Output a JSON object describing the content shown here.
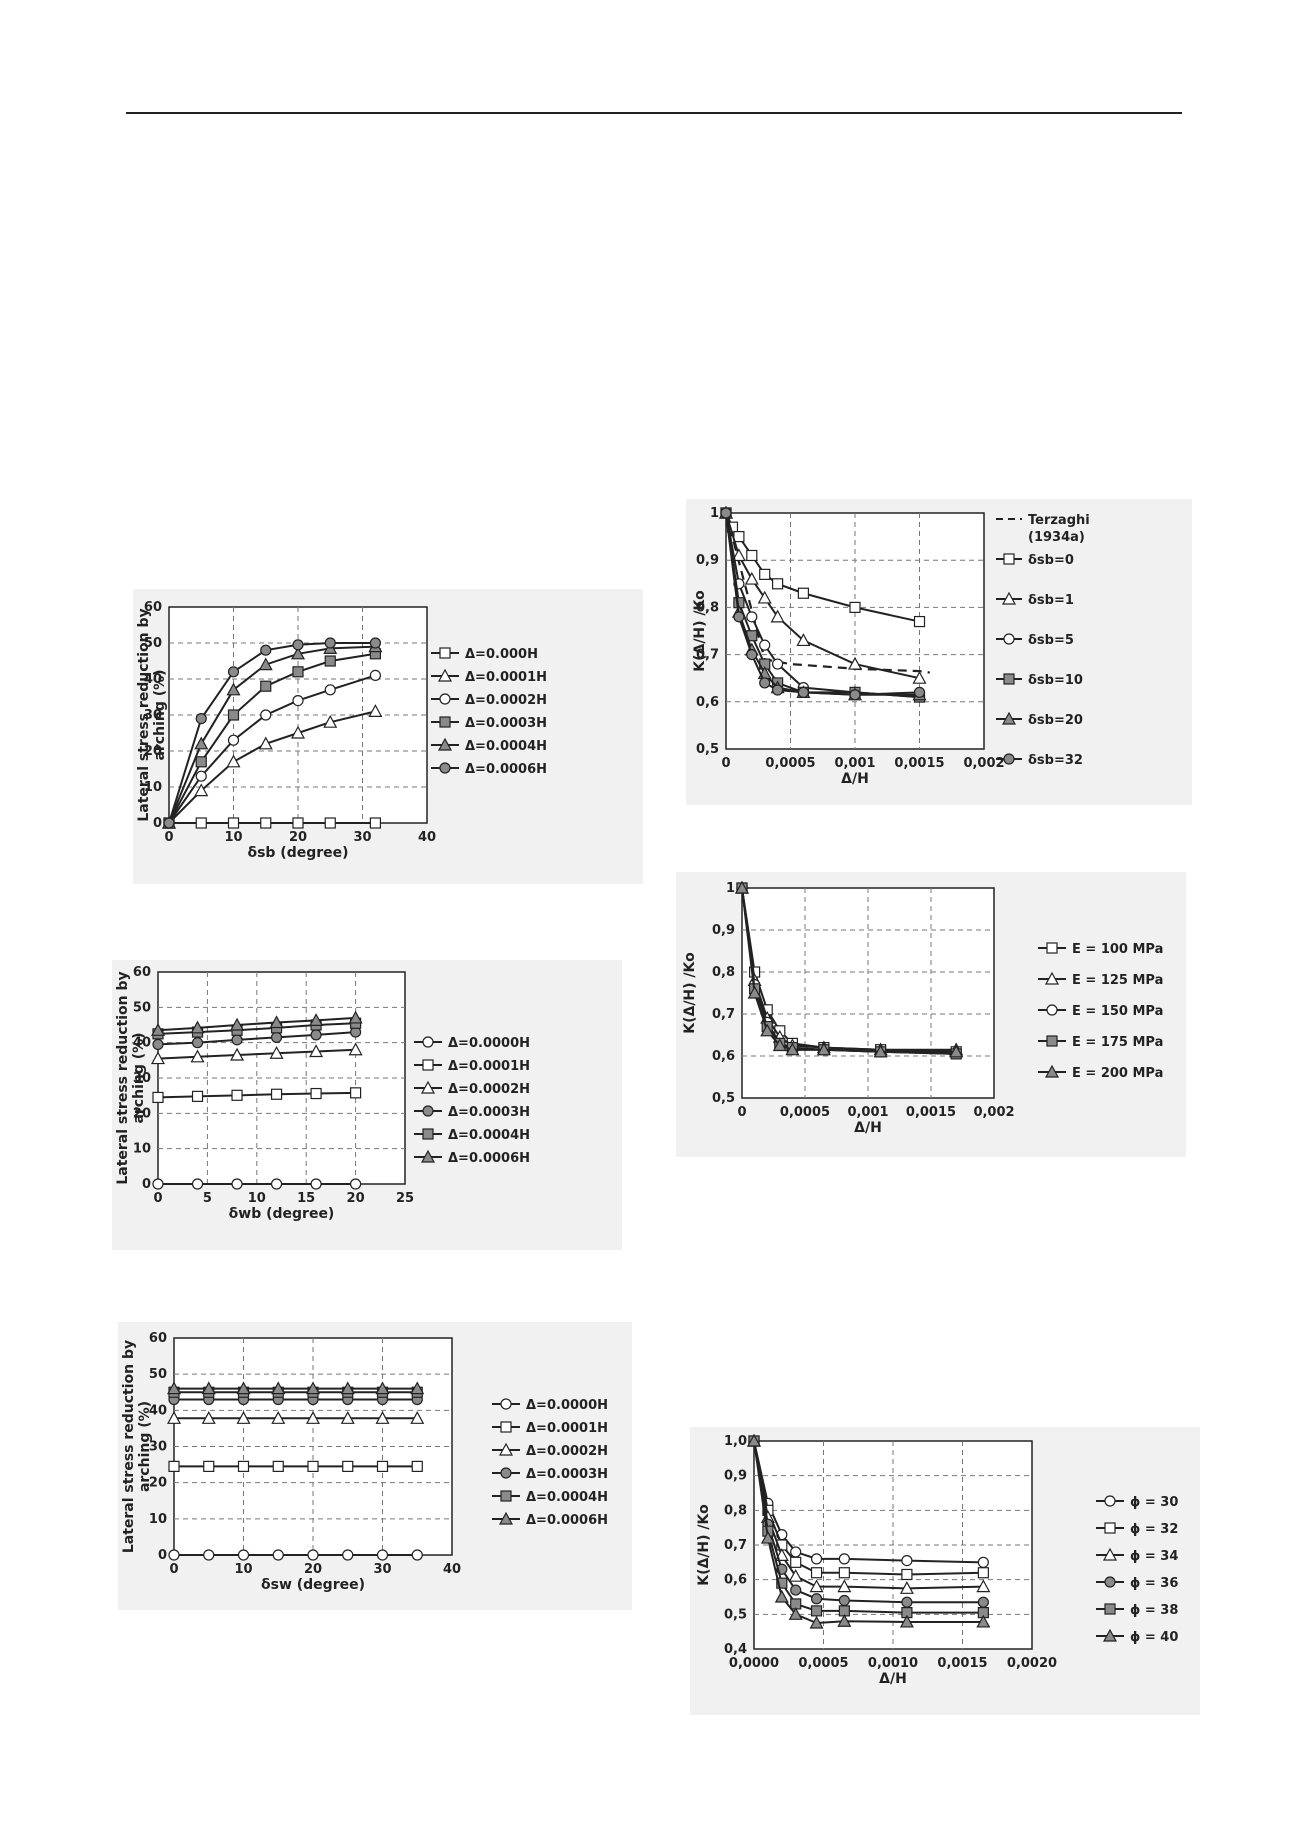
{
  "chart_data": [
    {
      "id": "c1",
      "type": "line",
      "xlabel": "δsb (degree)",
      "ylabel": "Lateral stress reduction by arching (%)",
      "xlim": [
        0,
        40
      ],
      "ylim": [
        0,
        60
      ],
      "xticks": [
        0,
        10,
        20,
        30,
        40
      ],
      "yticks": [
        0,
        10,
        20,
        30,
        40,
        50,
        60
      ],
      "xtick_labels": [
        "0",
        "10",
        "20",
        "30",
        "40"
      ],
      "ytick_labels": [
        "0",
        "10",
        "20",
        "30",
        "40",
        "50",
        "60"
      ],
      "grid": "dashed",
      "legend": "right",
      "series": [
        {
          "name": "Δ=0.000H",
          "marker": "square-open",
          "x": [
            0,
            5,
            10,
            15,
            20,
            25,
            32
          ],
          "y": [
            0,
            0,
            0,
            0,
            0,
            0,
            0
          ]
        },
        {
          "name": "Δ=0.0001H",
          "marker": "triangle-open",
          "x": [
            0,
            5,
            10,
            15,
            20,
            25,
            32
          ],
          "y": [
            0,
            9,
            17,
            22,
            25,
            28,
            31
          ]
        },
        {
          "name": "Δ=0.0002H",
          "marker": "circle-open",
          "x": [
            0,
            5,
            10,
            15,
            20,
            25,
            32
          ],
          "y": [
            0,
            13,
            23,
            30,
            34,
            37,
            41
          ]
        },
        {
          "name": "Δ=0.0003H",
          "marker": "square-gray",
          "x": [
            0,
            5,
            10,
            15,
            20,
            25,
            32
          ],
          "y": [
            0,
            17,
            30,
            38,
            42,
            45,
            47
          ]
        },
        {
          "name": "Δ=0.0004H",
          "marker": "triangle-gray",
          "x": [
            0,
            5,
            10,
            15,
            20,
            25,
            32
          ],
          "y": [
            0,
            22,
            37,
            44,
            47,
            48.5,
            49
          ]
        },
        {
          "name": "Δ=0.0006H",
          "marker": "circle-gray",
          "x": [
            0,
            5,
            10,
            15,
            20,
            25,
            32
          ],
          "y": [
            0,
            29,
            42,
            48,
            49.5,
            50,
            50
          ]
        }
      ]
    },
    {
      "id": "c2",
      "type": "line",
      "xlabel": "Δ/H",
      "ylabel": "K(Δ/H) /Ko",
      "xlim": [
        0,
        0.002
      ],
      "ylim": [
        0.5,
        1
      ],
      "xticks": [
        0,
        0.0005,
        0.001,
        0.0015,
        0.002
      ],
      "yticks": [
        0.5,
        0.6,
        0.7,
        0.8,
        0.9,
        1
      ],
      "xtick_labels": [
        "0",
        "0,0005",
        "0,001",
        "0,0015",
        "0,002"
      ],
      "ytick_labels": [
        "0,5",
        "0,6",
        "0,7",
        "0,8",
        "0,9",
        "1"
      ],
      "grid": "dashed",
      "legend": "right",
      "series": [
        {
          "name": "Terzaghi (1934a)",
          "marker": "dashed",
          "x": [
            0,
            0.0003,
            0.0005,
            0.001,
            0.0015,
            0.00158
          ],
          "y": [
            1,
            0.69,
            0.68,
            0.67,
            0.665,
            0.662
          ]
        },
        {
          "name": "δsb=0",
          "marker": "square-open",
          "x": [
            0,
            5e-05,
            0.0001,
            0.0002,
            0.0003,
            0.0004,
            0.0006,
            0.001,
            0.0015
          ],
          "y": [
            1,
            0.97,
            0.95,
            0.91,
            0.87,
            0.85,
            0.83,
            0.8,
            0.77
          ]
        },
        {
          "name": "δsb=1",
          "marker": "triangle-open",
          "x": [
            0,
            0.0001,
            0.0002,
            0.0003,
            0.0004,
            0.0006,
            0.001,
            0.0015
          ],
          "y": [
            1,
            0.91,
            0.86,
            0.82,
            0.78,
            0.73,
            0.68,
            0.65
          ]
        },
        {
          "name": "δsb=5",
          "marker": "circle-open",
          "x": [
            0,
            0.0001,
            0.0002,
            0.0003,
            0.0004,
            0.0006,
            0.001,
            0.0015
          ],
          "y": [
            1,
            0.85,
            0.78,
            0.72,
            0.68,
            0.63,
            0.62,
            0.61
          ]
        },
        {
          "name": "δsb=10",
          "marker": "square-gray",
          "x": [
            0,
            0.0001,
            0.0002,
            0.0003,
            0.0004,
            0.0006,
            0.001,
            0.0015
          ],
          "y": [
            1,
            0.81,
            0.74,
            0.68,
            0.64,
            0.62,
            0.62,
            0.61
          ]
        },
        {
          "name": "δsb=20",
          "marker": "triangle-gray",
          "x": [
            0,
            0.0001,
            0.0002,
            0.0003,
            0.0004,
            0.0006,
            0.001,
            0.0015
          ],
          "y": [
            1,
            0.79,
            0.71,
            0.66,
            0.63,
            0.62,
            0.615,
            0.615
          ]
        },
        {
          "name": "δsb=32",
          "marker": "circle-gray",
          "x": [
            0,
            0.0001,
            0.0002,
            0.0003,
            0.0004,
            0.0006,
            0.001,
            0.0015
          ],
          "y": [
            1,
            0.78,
            0.7,
            0.64,
            0.625,
            0.62,
            0.615,
            0.62
          ]
        }
      ]
    },
    {
      "id": "c3",
      "type": "line",
      "xlabel": "δwb (degree)",
      "ylabel": "Lateral stress reduction by arching (%)",
      "xlim": [
        0,
        25
      ],
      "ylim": [
        0,
        60
      ],
      "xticks": [
        0,
        5,
        10,
        15,
        20,
        25
      ],
      "yticks": [
        0,
        10,
        20,
        30,
        40,
        50,
        60
      ],
      "xtick_labels": [
        "0",
        "5",
        "10",
        "15",
        "20",
        "25"
      ],
      "ytick_labels": [
        "0",
        "10",
        "20",
        "30",
        "40",
        "50",
        "60"
      ],
      "grid": "dashed",
      "legend": "right",
      "series": [
        {
          "name": "Δ=0.0000H",
          "marker": "circle-open",
          "x": [
            0,
            4,
            8,
            12,
            16,
            20
          ],
          "y": [
            0,
            0,
            0,
            0,
            0,
            0
          ]
        },
        {
          "name": "Δ=0.0001H",
          "marker": "square-open",
          "x": [
            0,
            4,
            8,
            12,
            16,
            20
          ],
          "y": [
            24.5,
            24.8,
            25.1,
            25.4,
            25.6,
            25.8
          ]
        },
        {
          "name": "Δ=0.0002H",
          "marker": "triangle-open",
          "x": [
            0,
            4,
            8,
            12,
            16,
            20
          ],
          "y": [
            35.5,
            36,
            36.5,
            37,
            37.5,
            38
          ]
        },
        {
          "name": "Δ=0.0003H",
          "marker": "circle-gray",
          "x": [
            0,
            4,
            8,
            12,
            16,
            20
          ],
          "y": [
            39.5,
            40,
            40.8,
            41.5,
            42.2,
            43
          ]
        },
        {
          "name": "Δ=0.0004H",
          "marker": "square-gray",
          "x": [
            0,
            4,
            8,
            12,
            16,
            20
          ],
          "y": [
            42.5,
            43,
            43.5,
            44.2,
            45,
            45.5
          ]
        },
        {
          "name": "Δ=0.0006H",
          "marker": "triangle-gray",
          "x": [
            0,
            4,
            8,
            12,
            16,
            20
          ],
          "y": [
            43.5,
            44.2,
            45,
            45.7,
            46.3,
            47
          ]
        }
      ]
    },
    {
      "id": "c4",
      "type": "line",
      "xlabel": "Δ/H",
      "ylabel": "K(Δ/H) /Ko",
      "xlim": [
        0,
        0.002
      ],
      "ylim": [
        0.5,
        1
      ],
      "xticks": [
        0,
        0.0005,
        0.001,
        0.0015,
        0.002
      ],
      "yticks": [
        0.5,
        0.6,
        0.7,
        0.8,
        0.9,
        1
      ],
      "xtick_labels": [
        "0",
        "0,0005",
        "0,001",
        "0,0015",
        "0,002"
      ],
      "ytick_labels": [
        "0,5",
        "0,6",
        "0,7",
        "0,8",
        "0,9",
        "1"
      ],
      "grid": "dashed",
      "legend": "right",
      "series": [
        {
          "name": "E = 100 MPa",
          "marker": "square-open",
          "x": [
            0,
            0.0001,
            0.0002,
            0.0003,
            0.0004,
            0.00065,
            0.0011,
            0.0017
          ],
          "y": [
            1,
            0.8,
            0.71,
            0.66,
            0.63,
            0.62,
            0.615,
            0.61
          ]
        },
        {
          "name": "E = 125 MPa",
          "marker": "triangle-open",
          "x": [
            0,
            0.0001,
            0.0002,
            0.0003,
            0.0004,
            0.00065,
            0.0011,
            0.0017
          ],
          "y": [
            1,
            0.78,
            0.69,
            0.645,
            0.625,
            0.62,
            0.615,
            0.615
          ]
        },
        {
          "name": "E = 150 MPa",
          "marker": "circle-open",
          "x": [
            0,
            0.0001,
            0.0002,
            0.0003,
            0.0004,
            0.00065,
            0.0011,
            0.0017
          ],
          "y": [
            1,
            0.77,
            0.68,
            0.63,
            0.615,
            0.615,
            0.61,
            0.605
          ]
        },
        {
          "name": "E = 175 MPa",
          "marker": "square-gray",
          "x": [
            0,
            0.0001,
            0.0002,
            0.0003,
            0.0004,
            0.00065,
            0.0011,
            0.0017
          ],
          "y": [
            1,
            0.76,
            0.67,
            0.63,
            0.62,
            0.615,
            0.61,
            0.605
          ]
        },
        {
          "name": "E = 200 MPa",
          "marker": "triangle-gray",
          "x": [
            0,
            0.0001,
            0.0002,
            0.0003,
            0.0004,
            0.00065,
            0.0011,
            0.0017
          ],
          "y": [
            1,
            0.75,
            0.66,
            0.625,
            0.615,
            0.615,
            0.61,
            0.61
          ]
        }
      ]
    },
    {
      "id": "c5",
      "type": "line",
      "xlabel": "δsw (degree)",
      "ylabel": "Lateral stress reduction by arching (%)",
      "xlim": [
        0,
        40
      ],
      "ylim": [
        0,
        60
      ],
      "xticks": [
        0,
        10,
        20,
        30,
        40
      ],
      "yticks": [
        0,
        10,
        20,
        30,
        40,
        50,
        60
      ],
      "xtick_labels": [
        "0",
        "10",
        "20",
        "30",
        "40"
      ],
      "ytick_labels": [
        "0",
        "10",
        "20",
        "30",
        "40",
        "50",
        "60"
      ],
      "grid": "dashed",
      "legend": "right",
      "series": [
        {
          "name": "Δ=0.0000H",
          "marker": "circle-open",
          "x": [
            0,
            5,
            10,
            15,
            20,
            25,
            30,
            35
          ],
          "y": [
            0,
            0,
            0,
            0,
            0,
            0,
            0,
            0
          ]
        },
        {
          "name": "Δ=0.0001H",
          "marker": "square-open",
          "x": [
            0,
            5,
            10,
            15,
            20,
            25,
            30,
            35
          ],
          "y": [
            24.5,
            24.5,
            24.5,
            24.5,
            24.5,
            24.5,
            24.5,
            24.5
          ]
        },
        {
          "name": "Δ=0.0002H",
          "marker": "triangle-open",
          "x": [
            0,
            5,
            10,
            15,
            20,
            25,
            30,
            35
          ],
          "y": [
            37.8,
            37.8,
            37.8,
            37.8,
            37.8,
            37.8,
            37.8,
            37.8
          ]
        },
        {
          "name": "Δ=0.0003H",
          "marker": "circle-gray",
          "x": [
            0,
            5,
            10,
            15,
            20,
            25,
            30,
            35
          ],
          "y": [
            43,
            43,
            43,
            43,
            43,
            43,
            43,
            43
          ]
        },
        {
          "name": "Δ=0.0004H",
          "marker": "square-gray",
          "x": [
            0,
            5,
            10,
            15,
            20,
            25,
            30,
            35
          ],
          "y": [
            45,
            45,
            45,
            45,
            45,
            45,
            45,
            45
          ]
        },
        {
          "name": "Δ=0.0006H",
          "marker": "triangle-gray",
          "x": [
            0,
            5,
            10,
            15,
            20,
            25,
            30,
            35
          ],
          "y": [
            46,
            46,
            46,
            46,
            46,
            46,
            46,
            46
          ]
        }
      ]
    },
    {
      "id": "c6",
      "type": "line",
      "xlabel": "Δ/H",
      "ylabel": "K(Δ/H) /Ko",
      "xlim": [
        0,
        0.002
      ],
      "ylim": [
        0.4,
        1
      ],
      "xticks": [
        0,
        0.0005,
        0.001,
        0.0015,
        0.002
      ],
      "yticks": [
        0.4,
        0.5,
        0.6,
        0.7,
        0.8,
        0.9,
        1
      ],
      "xtick_labels": [
        "0,0000",
        "0,0005",
        "0,0010",
        "0,0015",
        "0,0020"
      ],
      "ytick_labels": [
        "0,4",
        "0,5",
        "0,6",
        "0,7",
        "0,8",
        "0,9",
        "1,0"
      ],
      "grid": "dashed",
      "legend": "right",
      "series": [
        {
          "name": "ϕ = 30",
          "marker": "circle-open",
          "x": [
            0,
            0.0001,
            0.0002,
            0.0003,
            0.00045,
            0.00065,
            0.0011,
            0.00165
          ],
          "y": [
            1,
            0.82,
            0.73,
            0.68,
            0.66,
            0.66,
            0.655,
            0.65
          ]
        },
        {
          "name": "ϕ = 32",
          "marker": "square-open",
          "x": [
            0,
            0.0001,
            0.0002,
            0.0003,
            0.00045,
            0.00065,
            0.0011,
            0.00165
          ],
          "y": [
            1,
            0.8,
            0.7,
            0.65,
            0.62,
            0.62,
            0.615,
            0.62
          ]
        },
        {
          "name": "ϕ = 34",
          "marker": "triangle-open",
          "x": [
            0,
            0.0001,
            0.0002,
            0.0003,
            0.00045,
            0.00065,
            0.0011,
            0.00165
          ],
          "y": [
            1,
            0.78,
            0.67,
            0.61,
            0.58,
            0.58,
            0.575,
            0.58
          ]
        },
        {
          "name": "ϕ = 36",
          "marker": "circle-gray",
          "x": [
            0,
            0.0001,
            0.0002,
            0.0003,
            0.00045,
            0.00065,
            0.0011,
            0.00165
          ],
          "y": [
            1,
            0.76,
            0.63,
            0.57,
            0.545,
            0.54,
            0.535,
            0.535
          ]
        },
        {
          "name": "ϕ = 38",
          "marker": "square-gray",
          "x": [
            0,
            0.0001,
            0.0002,
            0.0003,
            0.00045,
            0.00065,
            0.0011,
            0.00165
          ],
          "y": [
            1,
            0.74,
            0.59,
            0.53,
            0.51,
            0.51,
            0.505,
            0.505
          ]
        },
        {
          "name": "ϕ = 40",
          "marker": "triangle-gray",
          "x": [
            0,
            0.0001,
            0.0002,
            0.0003,
            0.00045,
            0.00065,
            0.0011,
            0.00165
          ],
          "y": [
            1,
            0.72,
            0.55,
            0.5,
            0.475,
            0.48,
            0.478,
            0.478
          ]
        }
      ]
    }
  ]
}
